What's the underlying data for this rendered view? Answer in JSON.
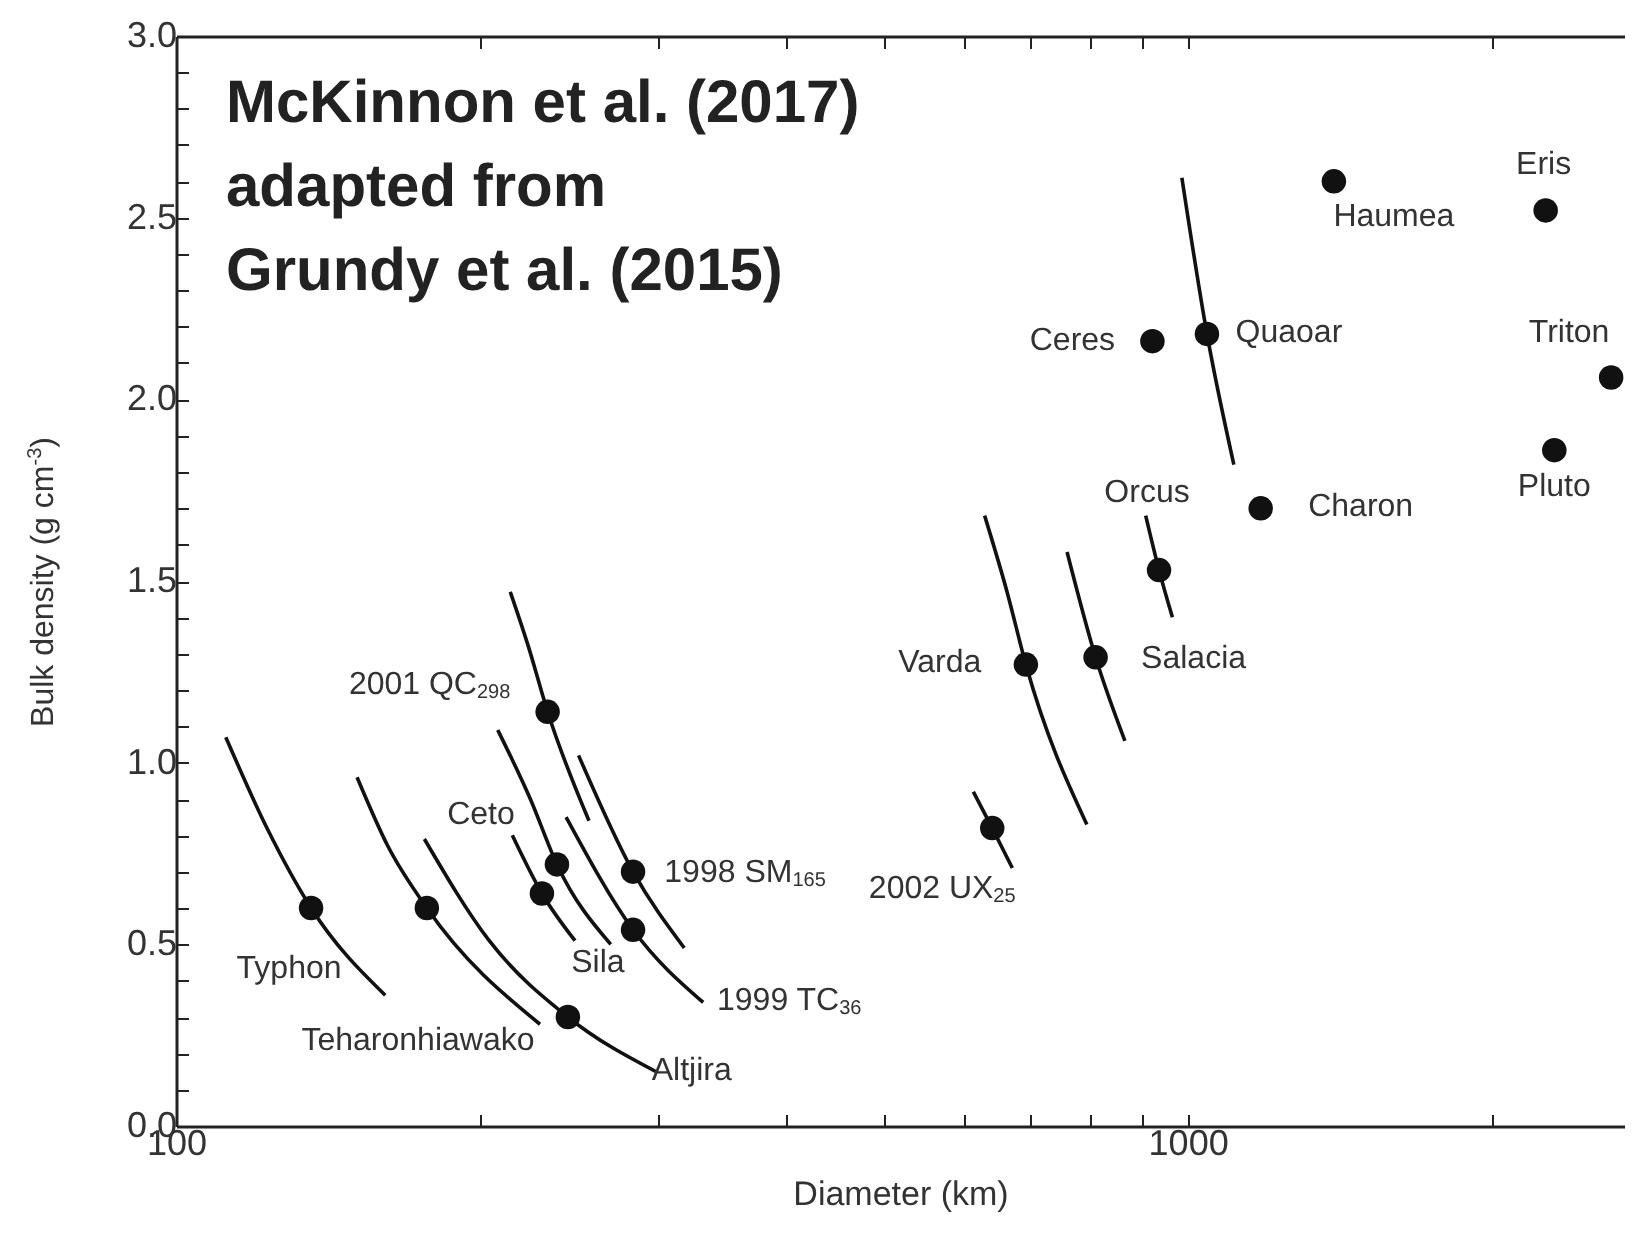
{
  "chart_data": {
    "type": "scatter",
    "xlabel": "Diameter (km)",
    "ylabel": "Bulk density (g cm$^{-3}$)",
    "log": "x",
    "grid": false,
    "xlim": [
      100,
      2700
    ],
    "ylim": [
      0,
      3
    ],
    "xticks": [
      100,
      {
        "value": 200,
        "label": null
      },
      {
        "value": 300,
        "label": null
      },
      {
        "value": 400,
        "label": null
      },
      {
        "value": 500,
        "label": null
      },
      {
        "value": 600,
        "label": null
      },
      {
        "value": 700,
        "label": null
      },
      {
        "value": 800,
        "label": null
      },
      {
        "value": 900,
        "label": null
      },
      1000,
      {
        "value": 2000,
        "label": null
      }
    ],
    "yticks": [
      {
        "value": 0,
        "label": "0.0"
      },
      {
        "value": 0.1,
        "label": null
      },
      {
        "value": 0.2,
        "label": null
      },
      {
        "value": 0.3,
        "label": null
      },
      {
        "value": 0.4,
        "label": null
      },
      0.5,
      {
        "value": 0.6,
        "label": null
      },
      {
        "value": 0.7,
        "label": null
      },
      {
        "value": 0.8,
        "label": null
      },
      {
        "value": 0.9,
        "label": null
      },
      {
        "value": 1,
        "label": "1.0"
      },
      {
        "value": 1.1,
        "label": null
      },
      {
        "value": 1.2,
        "label": null
      },
      {
        "value": 1.3,
        "label": null
      },
      {
        "value": 1.4,
        "label": null
      },
      1.5,
      {
        "value": 1.6,
        "label": null
      },
      {
        "value": 1.7,
        "label": null
      },
      {
        "value": 1.8,
        "label": null
      },
      {
        "value": 1.9,
        "label": null
      },
      {
        "value": 2,
        "label": "2.0"
      },
      {
        "value": 2.1,
        "label": null
      },
      {
        "value": 2.2,
        "label": null
      },
      {
        "value": 2.3,
        "label": null
      },
      {
        "value": 2.4,
        "label": null
      },
      2.5,
      {
        "value": 2.6,
        "label": null
      },
      {
        "value": 2.7,
        "label": null
      },
      {
        "value": 2.8,
        "label": null
      },
      {
        "value": 2.9,
        "label": null
      },
      {
        "value": 3,
        "label": "3.0"
      }
    ],
    "series": [
      {
        "type": "scatter",
        "marker": "circle",
        "color": "#111111",
        "x": [
          136,
          177,
          244,
          230,
          238,
          233,
          283,
          283,
          641,
          692,
          811,
          937,
          923,
          1045,
          1181,
          1395,
          2259,
          2622,
          2304
        ],
        "values": [
          0.6,
          0.6,
          0.3,
          0.64,
          0.72,
          1.14,
          0.7,
          0.54,
          0.82,
          1.27,
          1.29,
          1.53,
          2.16,
          2.18,
          1.7,
          2.6,
          2.52,
          2.06,
          1.86
        ]
      },
      {
        "type": "line",
        "color": "#111111",
        "x": [
          112,
          123,
          136,
          161
        ],
        "values": [
          1.07,
          0.82,
          0.6,
          0.36
        ]
      },
      {
        "type": "line",
        "color": "#111111",
        "x": [
          151,
          162,
          177,
          229
        ],
        "values": [
          0.96,
          0.77,
          0.6,
          0.28
        ]
      },
      {
        "type": "line",
        "color": "#111111",
        "x": [
          176,
          204,
          244,
          298
        ],
        "values": [
          0.79,
          0.51,
          0.3,
          0.15
        ]
      },
      {
        "type": "line",
        "color": "#111111",
        "x": [
          215,
          230,
          248
        ],
        "values": [
          0.8,
          0.64,
          0.51
        ]
      },
      {
        "type": "line",
        "color": "#111111",
        "x": [
          208,
          224,
          238,
          269
        ],
        "values": [
          1.09,
          0.9,
          0.72,
          0.5
        ]
      },
      {
        "type": "line",
        "color": "#111111",
        "x": [
          214,
          223,
          233,
          256
        ],
        "values": [
          1.47,
          1.32,
          1.14,
          0.84
        ]
      },
      {
        "type": "line",
        "color": "#111111",
        "x": [
          250,
          283,
          318
        ],
        "values": [
          1.02,
          0.7,
          0.49
        ]
      },
      {
        "type": "line",
        "color": "#111111",
        "x": [
          243,
          283,
          332
        ],
        "values": [
          0.85,
          0.54,
          0.34
        ]
      },
      {
        "type": "line",
        "color": "#111111",
        "x": [
          614,
          641,
          671
        ],
        "values": [
          0.92,
          0.82,
          0.71
        ]
      },
      {
        "type": "line",
        "color": "#111111",
        "x": [
          630,
          663,
          692,
          795
        ],
        "values": [
          1.68,
          1.47,
          1.27,
          0.83
        ]
      },
      {
        "type": "line",
        "color": "#111111",
        "x": [
          760,
          811,
          867
        ],
        "values": [
          1.58,
          1.29,
          1.06
        ]
      },
      {
        "type": "line",
        "color": "#111111",
        "x": [
          909,
          937,
          966
        ],
        "values": [
          1.68,
          1.53,
          1.4
        ]
      },
      {
        "type": "line",
        "color": "#111111",
        "x": [
          987,
          1045,
          1111
        ],
        "values": [
          2.61,
          2.18,
          1.82
        ]
      }
    ],
    "annotations": [
      "McKinnon et al. (2017)\nadapted from\nGrundy et al. (2015)",
      {
        "text": "Typhon",
        "x": 136,
        "y": 0.6
      },
      {
        "text": "Teharonhiawako",
        "x": 229,
        "y": 0.28
      },
      {
        "text": "Altjira",
        "x": 298,
        "y": 0.15
      },
      {
        "text": "Sila",
        "x": 230,
        "y": 0.64
      },
      {
        "text": "Ceto",
        "x": 238,
        "y": 0.72
      },
      {
        "text": "2001 QC$_{298}$",
        "x": 233,
        "y": 1.14
      },
      {
        "text": "1998 SM$_{165}$",
        "x": 283,
        "y": 0.7
      },
      {
        "text": "1999 TC$_{36}$",
        "x": 332,
        "y": 0.34
      },
      {
        "text": "2002 UX$_{25}$",
        "x": 641,
        "y": 0.82
      },
      {
        "text": "Varda",
        "x": 692,
        "y": 1.27
      },
      {
        "text": "Salacia",
        "x": 811,
        "y": 1.29
      },
      {
        "text": "Orcus",
        "x": 937,
        "y": 1.53
      },
      {
        "text": "Ceres",
        "x": 923,
        "y": 2.16
      },
      {
        "text": "Quaoar",
        "x": 1045,
        "y": 2.18
      },
      {
        "text": "Charon",
        "x": 1181,
        "y": 1.7
      },
      {
        "text": "Haumea",
        "x": 1395,
        "y": 2.6
      },
      {
        "text": "Eris",
        "x": 2259,
        "y": 2.52
      },
      {
        "text": "Triton",
        "x": 2622,
        "y": 2.06
      },
      {
        "text": "Pluto",
        "x": 2304,
        "y": 1.86
      }
    ]
  }
}
